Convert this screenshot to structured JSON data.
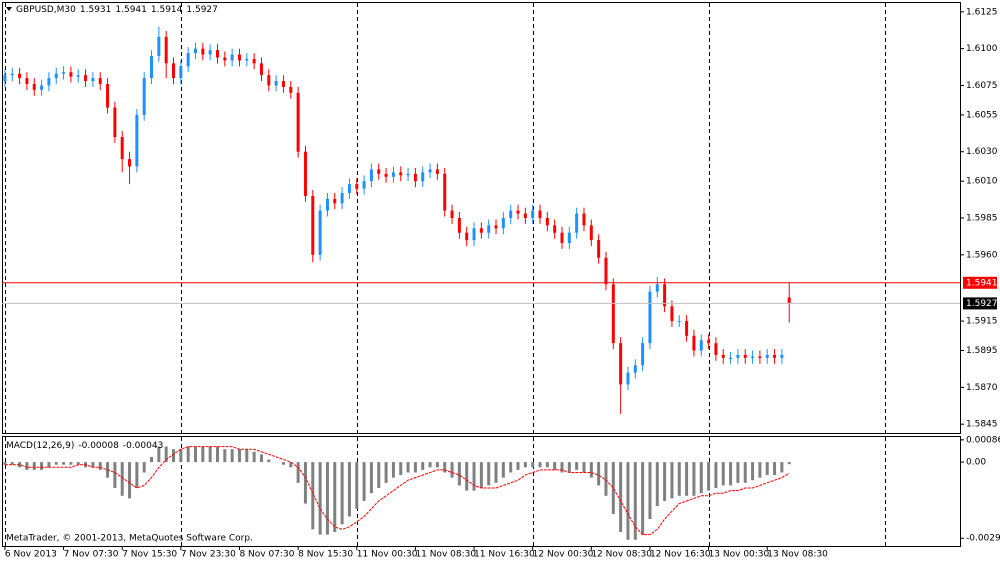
{
  "chart_data": [
    {
      "type": "candlestick",
      "title": "GBPUSD,M30",
      "footer": "MetaTrader, © 2001-2013, MetaQuotes Software Corp.",
      "up_color": "#1e90ff",
      "down_color": "#ff0000",
      "xlim": [
        -0.4,
        130.3
      ],
      "xticks": [
        {
          "value": 0,
          "label": "6 Nov 2013"
        },
        {
          "value": 8,
          "label": "7 Nov 07:30"
        },
        {
          "value": 16,
          "label": "7 Nov 15:30"
        },
        {
          "value": 24,
          "label": "7 Nov 23:30"
        },
        {
          "value": 32,
          "label": "8 Nov 07:30"
        },
        {
          "value": 40,
          "label": "8 Nov 15:30"
        },
        {
          "value": 48,
          "label": "11 Nov 00:30"
        },
        {
          "value": 56,
          "label": "11 Nov 08:30"
        },
        {
          "value": 64,
          "label": "11 Nov 16:30"
        },
        {
          "value": 72,
          "label": "12 Nov 00:30"
        },
        {
          "value": 80,
          "label": "12 Nov 08:30"
        },
        {
          "value": 88,
          "label": "12 Nov 16:30"
        },
        {
          "value": 96,
          "label": "13 Nov 00:30"
        },
        {
          "value": 104,
          "label": "13 Nov 08:30"
        }
      ],
      "period_separators": [
        0,
        24,
        48,
        72,
        96,
        120
      ],
      "ylim": [
        1.5839,
        1.6131
      ],
      "yticks": [
        1.6125,
        {
          "value": 1.61,
          "label": "1.6100"
        },
        1.6075,
        1.6055,
        {
          "value": 1.603,
          "label": "1.6030"
        },
        {
          "value": 1.601,
          "label": "1.6010"
        },
        1.5985,
        {
          "value": 1.596,
          "label": "1.5960"
        },
        1.5915,
        1.5895,
        {
          "value": 1.587,
          "label": "1.5870"
        },
        1.5845
      ],
      "ask_line": 1.5941,
      "ask_color": "#ff0000",
      "bid_color": "#c0c0c0",
      "open": [
        1.6078,
        1.6082,
        1.6083,
        1.608,
        1.6076,
        1.6072,
        1.6075,
        1.608,
        1.6083,
        1.6084,
        1.6081,
        1.6082,
        1.6078,
        1.608,
        1.6076,
        1.606,
        1.604,
        1.6025,
        1.602,
        1.6055,
        1.608,
        1.6095,
        1.6108,
        1.609,
        1.608,
        1.6088,
        1.6097,
        1.61,
        1.6096,
        1.6099,
        1.6094,
        1.6092,
        1.6096,
        1.6092,
        1.6093,
        1.609,
        1.6082,
        1.6075,
        1.6078,
        1.6074,
        1.607,
        1.603,
        1.6,
        1.596,
        1.599,
        1.5998,
        1.5995,
        1.6002,
        1.6008,
        1.6005,
        1.601,
        1.6018,
        1.6015,
        1.6013,
        1.6016,
        1.6014,
        1.6015,
        1.601,
        1.6016,
        1.6018,
        1.6015,
        1.599,
        1.5985,
        1.5975,
        1.597,
        1.5978,
        1.5975,
        1.598,
        1.5978,
        1.5985,
        1.599,
        1.5988,
        1.5985,
        1.599,
        1.5985,
        1.598,
        1.5975,
        1.5968,
        1.5975,
        1.5988,
        1.598,
        1.597,
        1.5958,
        1.594,
        1.59,
        1.5872,
        1.588,
        1.5885,
        1.59,
        1.5935,
        1.594,
        1.5925,
        1.5915,
        1.5915,
        1.5905,
        1.5895,
        1.5902,
        1.59,
        1.5892,
        1.589,
        1.589,
        1.5892,
        1.589,
        1.5891,
        1.589,
        1.5892,
        1.589,
        1.5931
      ],
      "high": [
        1.6086,
        1.6087,
        1.6087,
        1.6084,
        1.608,
        1.6079,
        1.6084,
        1.6087,
        1.6088,
        1.6088,
        1.6086,
        1.6086,
        1.6084,
        1.6084,
        1.608,
        1.6064,
        1.6044,
        1.603,
        1.6059,
        1.6084,
        1.6099,
        1.6115,
        1.6112,
        1.6094,
        1.6092,
        1.6101,
        1.6104,
        1.6104,
        1.6103,
        1.6103,
        1.6098,
        1.61,
        1.61,
        1.6097,
        1.6097,
        1.6094,
        1.6086,
        1.6082,
        1.6082,
        1.6078,
        1.6074,
        1.6034,
        1.6004,
        1.5994,
        1.6002,
        1.6002,
        1.6006,
        1.6012,
        1.6012,
        1.6014,
        1.6022,
        1.6022,
        1.6019,
        1.602,
        1.602,
        1.6019,
        1.6019,
        1.602,
        1.6022,
        1.6022,
        1.6019,
        1.5994,
        1.5989,
        1.5979,
        1.5982,
        1.5982,
        1.5984,
        1.5984,
        1.5989,
        1.5994,
        1.5994,
        1.5992,
        1.5994,
        1.5994,
        1.5989,
        1.5984,
        1.5979,
        1.5979,
        1.5992,
        1.5992,
        1.5984,
        1.5974,
        1.5962,
        1.5944,
        1.5904,
        1.5884,
        1.5889,
        1.5904,
        1.5939,
        1.5945,
        1.5944,
        1.5929,
        1.5919,
        1.5919,
        1.5909,
        1.5906,
        1.5906,
        1.5904,
        1.5896,
        1.5894,
        1.5896,
        1.5896,
        1.5895,
        1.5895,
        1.5896,
        1.5896,
        1.5896,
        1.5941
      ],
      "low": [
        1.6074,
        1.6078,
        1.6076,
        1.6072,
        1.6068,
        1.6068,
        1.6071,
        1.6076,
        1.6079,
        1.6077,
        1.6077,
        1.6074,
        1.6074,
        1.6072,
        1.6056,
        1.6036,
        1.6016,
        1.6008,
        1.6016,
        1.6051,
        1.6076,
        1.6091,
        1.608,
        1.6076,
        1.6076,
        1.6084,
        1.6093,
        1.6092,
        1.6092,
        1.609,
        1.6088,
        1.6088,
        1.6088,
        1.6088,
        1.6086,
        1.6078,
        1.6071,
        1.6071,
        1.607,
        1.6066,
        1.6026,
        1.5996,
        1.5955,
        1.5956,
        1.5986,
        1.5991,
        1.5991,
        1.5998,
        1.6001,
        1.6001,
        1.6006,
        1.6011,
        1.6009,
        1.6009,
        1.601,
        1.601,
        1.6006,
        1.6006,
        1.6012,
        1.6011,
        1.5986,
        1.5981,
        1.5971,
        1.5966,
        1.5966,
        1.5971,
        1.5971,
        1.5974,
        1.5974,
        1.5981,
        1.5984,
        1.5981,
        1.5981,
        1.5981,
        1.5976,
        1.5971,
        1.5964,
        1.5964,
        1.5971,
        1.5976,
        1.5966,
        1.5954,
        1.5936,
        1.5896,
        1.5852,
        1.5868,
        1.5876,
        1.5881,
        1.5896,
        1.5931,
        1.5921,
        1.5911,
        1.5911,
        1.5901,
        1.5891,
        1.5891,
        1.5896,
        1.5888,
        1.5886,
        1.5886,
        1.5886,
        1.5886,
        1.5886,
        1.5886,
        1.5886,
        1.5886,
        1.5886,
        1.5914
      ],
      "close": [
        1.6082,
        1.6083,
        1.608,
        1.6076,
        1.6072,
        1.6075,
        1.608,
        1.6083,
        1.6084,
        1.6081,
        1.6082,
        1.6078,
        1.608,
        1.6076,
        1.606,
        1.604,
        1.6025,
        1.602,
        1.6055,
        1.608,
        1.6095,
        1.6108,
        1.609,
        1.608,
        1.6088,
        1.6097,
        1.61,
        1.6096,
        1.6099,
        1.6094,
        1.6092,
        1.6096,
        1.6092,
        1.6093,
        1.609,
        1.6082,
        1.6075,
        1.6078,
        1.6074,
        1.607,
        1.603,
        1.6,
        1.596,
        1.599,
        1.5998,
        1.5995,
        1.6002,
        1.6008,
        1.6005,
        1.601,
        1.6018,
        1.6015,
        1.6013,
        1.6016,
        1.6014,
        1.6015,
        1.601,
        1.6016,
        1.6018,
        1.6015,
        1.599,
        1.5985,
        1.5975,
        1.597,
        1.5978,
        1.5975,
        1.598,
        1.5978,
        1.5985,
        1.599,
        1.5988,
        1.5985,
        1.599,
        1.5985,
        1.598,
        1.5975,
        1.5968,
        1.5975,
        1.5988,
        1.598,
        1.597,
        1.5958,
        1.594,
        1.59,
        1.5872,
        1.588,
        1.5885,
        1.59,
        1.5935,
        1.594,
        1.5925,
        1.5915,
        1.5915,
        1.5905,
        1.5895,
        1.5902,
        1.59,
        1.5892,
        1.589,
        1.589,
        1.5892,
        1.589,
        1.5891,
        1.589,
        1.5892,
        1.589,
        1.5892,
        1.5927
      ]
    },
    {
      "type": "macd",
      "title": "MACD(12,26,9)",
      "histogram_color": "#808080",
      "signal_color": "#ff0000",
      "ylim": [
        -0.00324,
        0.00097
      ],
      "yticks": [
        0.00086,
        {
          "value": 0,
          "label": "0.00"
        },
        -0.00294
      ],
      "histogram": [
        -0.0001,
        -0.0001,
        -0.0002,
        -0.0003,
        -0.0003,
        -0.0003,
        -0.0002,
        -0.0001,
        -0.0001,
        -0.0001,
        -0.0001,
        -0.0002,
        -0.0002,
        -0.0003,
        -0.0006,
        -0.001,
        -0.0013,
        -0.0014,
        -0.001,
        -0.0004,
        0.0002,
        0.0006,
        0.0006,
        0.0005,
        0.0005,
        0.0006,
        0.0006,
        0.0006,
        0.0006,
        0.0006,
        0.0005,
        0.0005,
        0.0005,
        0.0005,
        0.0004,
        0.0003,
        0.0001,
        0.0,
        -0.0001,
        -0.0002,
        -0.0008,
        -0.0016,
        -0.0026,
        -0.0028,
        -0.0028,
        -0.0027,
        -0.0024,
        -0.0021,
        -0.0018,
        -0.0015,
        -0.0012,
        -0.001,
        -0.0008,
        -0.0006,
        -0.0005,
        -0.0004,
        -0.0004,
        -0.0003,
        -0.0002,
        -0.0002,
        -0.0004,
        -0.0006,
        -0.0009,
        -0.0011,
        -0.0011,
        -0.001,
        -0.0009,
        -0.0008,
        -0.0006,
        -0.0004,
        -0.0003,
        -0.0002,
        -0.0002,
        -0.0002,
        -0.0002,
        -0.0003,
        -0.0004,
        -0.0004,
        -0.0003,
        -0.0004,
        -0.0006,
        -0.0009,
        -0.0013,
        -0.002,
        -0.0027,
        -0.003,
        -0.003,
        -0.0028,
        -0.0022,
        -0.0017,
        -0.0015,
        -0.0014,
        -0.0013,
        -0.0013,
        -0.0013,
        -0.0012,
        -0.0011,
        -0.001,
        -0.0009,
        -0.0009,
        -0.0008,
        -0.0008,
        -0.0007,
        -0.0006,
        -0.0005,
        -0.0005,
        -0.0004,
        -8e-05
      ],
      "signal": [
        -0.0001,
        -0.0001,
        -0.0001,
        -0.0002,
        -0.0002,
        -0.0002,
        -0.0002,
        -0.0002,
        -0.0002,
        -0.0002,
        -0.0001,
        -0.0001,
        -0.0002,
        -0.0002,
        -0.0003,
        -0.0004,
        -0.0006,
        -0.0008,
        -0.001,
        -0.0009,
        -0.0006,
        -0.0002,
        0.0001,
        0.0003,
        0.0005,
        0.0006,
        0.0006,
        0.0006,
        0.0006,
        0.0006,
        0.0006,
        0.0006,
        0.0005,
        0.0005,
        0.0005,
        0.0004,
        0.0003,
        0.0002,
        0.0001,
        0.0,
        -0.0002,
        -0.0006,
        -0.0012,
        -0.0018,
        -0.0022,
        -0.0025,
        -0.0026,
        -0.0025,
        -0.0023,
        -0.0021,
        -0.0018,
        -0.0015,
        -0.0013,
        -0.0011,
        -0.0009,
        -0.0007,
        -0.0006,
        -0.0005,
        -0.0004,
        -0.0003,
        -0.0003,
        -0.0004,
        -0.0005,
        -0.0007,
        -0.0009,
        -0.001,
        -0.001,
        -0.001,
        -0.0009,
        -0.0008,
        -0.0007,
        -0.0005,
        -0.0004,
        -0.0003,
        -0.0003,
        -0.0003,
        -0.0003,
        -0.0004,
        -0.0004,
        -0.0004,
        -0.0004,
        -0.0005,
        -0.0007,
        -0.001,
        -0.0015,
        -0.002,
        -0.0025,
        -0.0028,
        -0.0028,
        -0.0026,
        -0.0022,
        -0.0019,
        -0.0016,
        -0.0015,
        -0.0014,
        -0.0013,
        -0.0013,
        -0.0012,
        -0.0012,
        -0.0011,
        -0.0011,
        -0.001,
        -0.001,
        -0.0009,
        -0.0008,
        -0.0007,
        -0.0006,
        -0.00043
      ]
    }
  ]
}
